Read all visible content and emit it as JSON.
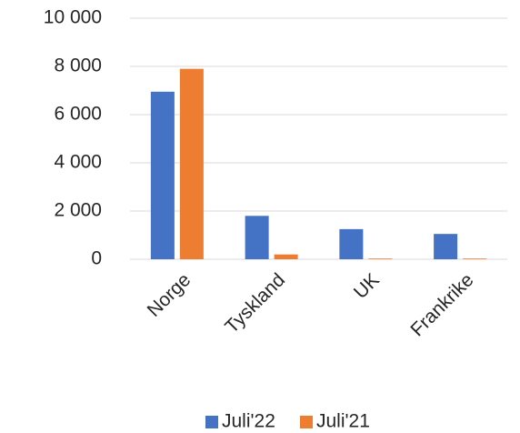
{
  "chart_data": {
    "type": "bar",
    "categories": [
      "Norge",
      "Tyskland",
      "UK",
      "Frankrike"
    ],
    "series": [
      {
        "name": "Juli'22",
        "color": "#4472c4",
        "values": [
          6950,
          1800,
          1250,
          1050
        ]
      },
      {
        "name": "Juli'21",
        "color": "#ed7d31",
        "values": [
          7900,
          200,
          30,
          30
        ]
      }
    ],
    "ylim": [
      0,
      10000
    ],
    "yticks": [
      0,
      {
        "value": 2000,
        "label": "2 000"
      },
      {
        "value": 4000,
        "label": "4 000"
      },
      {
        "value": 6000,
        "label": "6 000"
      },
      {
        "value": 8000,
        "label": "8 000"
      },
      {
        "value": 10000,
        "label": "10 000"
      }
    ],
    "grid": true,
    "legend": "bottom"
  }
}
